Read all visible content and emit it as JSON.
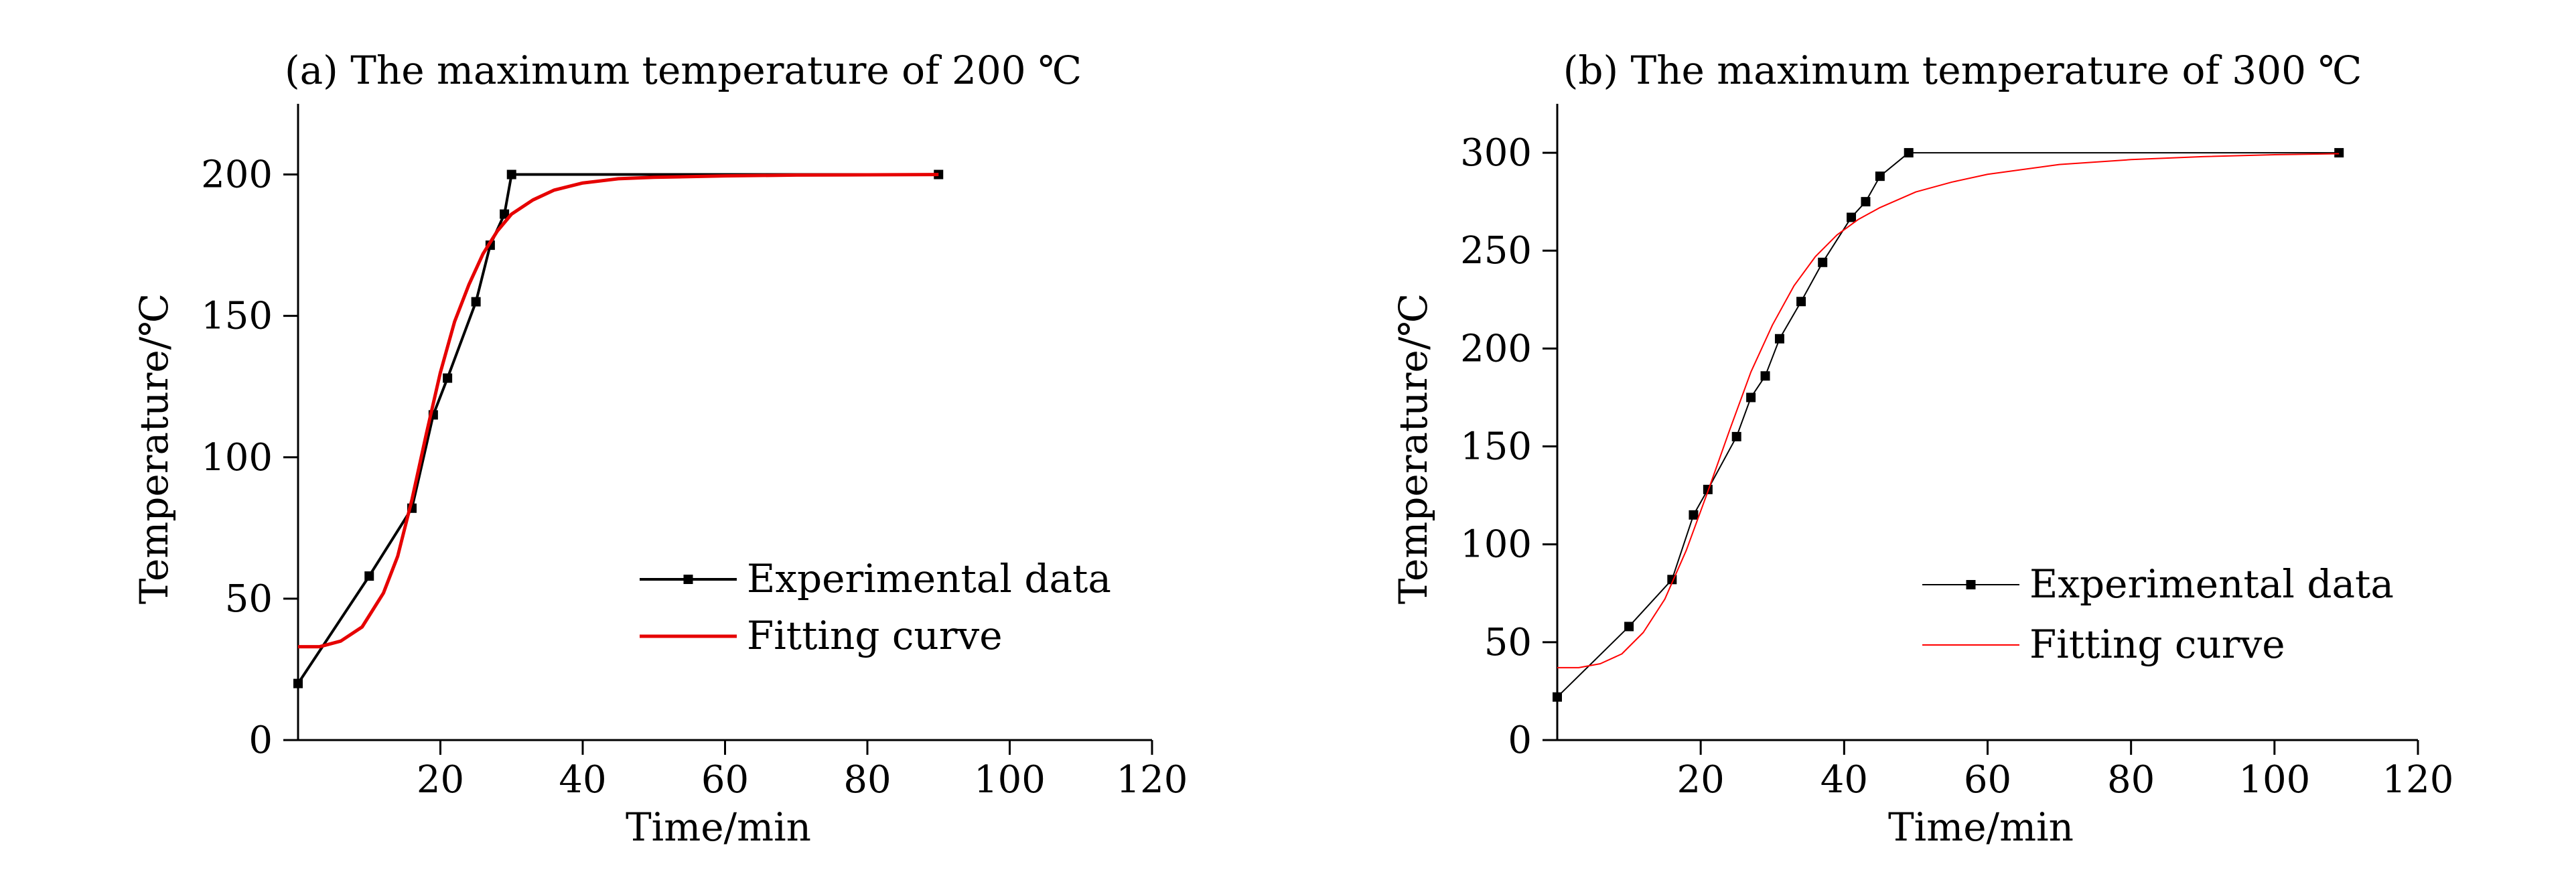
{
  "chart_data": [
    {
      "type": "line",
      "title": "(a) The maximum temperature of 200 ℃",
      "xlabel": "Time/min",
      "ylabel": "Temperature/℃",
      "xlim": [
        0,
        120
      ],
      "ylim": [
        0,
        225
      ],
      "xticks": [
        20,
        40,
        60,
        80,
        100,
        120
      ],
      "yticks": [
        0,
        50,
        100,
        150,
        200
      ],
      "legend_position": "center-right",
      "series": [
        {
          "name": "Experimental data",
          "color": "#000000",
          "marker": "square",
          "x": [
            0,
            10,
            16,
            19,
            21,
            25,
            27,
            29,
            30,
            90
          ],
          "y": [
            20,
            58,
            82,
            115,
            128,
            155,
            175,
            186,
            200,
            200
          ]
        },
        {
          "name": "Fitting curve",
          "color": "#e60000",
          "marker": "none",
          "x": [
            0,
            3,
            6,
            9,
            12,
            14,
            16,
            18,
            20,
            22,
            24,
            26,
            28,
            30,
            33,
            36,
            40,
            45,
            50,
            60,
            70,
            80,
            90
          ],
          "y": [
            33,
            33,
            35,
            40,
            52,
            65,
            85,
            108,
            130,
            148,
            161,
            172,
            180,
            186,
            191,
            194.5,
            197,
            198.5,
            199,
            199.5,
            199.8,
            199.9,
            200
          ]
        }
      ]
    },
    {
      "type": "line",
      "title": "(b) The maximum temperature of 300 ℃",
      "xlabel": "Time/min",
      "ylabel": "Temperature/℃",
      "xlim": [
        0,
        120
      ],
      "ylim": [
        0,
        325
      ],
      "xticks": [
        20,
        40,
        60,
        80,
        100,
        120
      ],
      "yticks": [
        0,
        50,
        100,
        150,
        200,
        250,
        300
      ],
      "legend_position": "center-right",
      "series": [
        {
          "name": "Experimental data",
          "color": "#000000",
          "marker": "square",
          "x": [
            0,
            10,
            16,
            19,
            21,
            25,
            27,
            29,
            31,
            34,
            37,
            41,
            43,
            45,
            49,
            109
          ],
          "y": [
            22,
            58,
            82,
            115,
            128,
            155,
            175,
            186,
            205,
            224,
            244,
            267,
            275,
            288,
            300,
            300
          ]
        },
        {
          "name": "Fitting curve",
          "color": "#ff0000",
          "marker": "none",
          "x": [
            0,
            3,
            6,
            9,
            12,
            15,
            18,
            21,
            24,
            27,
            30,
            33,
            36,
            39,
            42,
            45,
            50,
            55,
            60,
            70,
            80,
            90,
            100,
            109
          ],
          "y": [
            37,
            37,
            39,
            44,
            55,
            72,
            97,
            127,
            158,
            188,
            212,
            232,
            247,
            258,
            266,
            272,
            280,
            285,
            289,
            294,
            296.5,
            298,
            299,
            299.5
          ]
        }
      ]
    }
  ]
}
